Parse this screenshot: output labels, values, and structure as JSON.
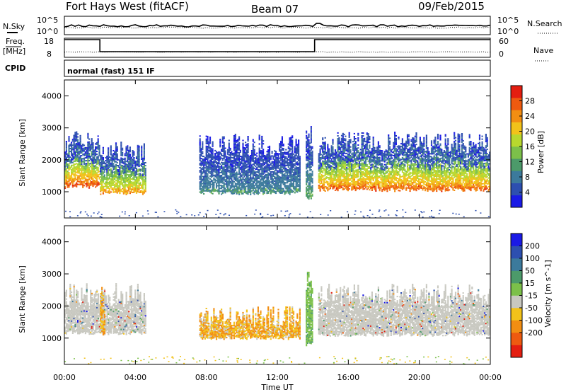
{
  "header": {
    "station": "Fort Hays West (fitACF)",
    "beam": "Beam 07",
    "date": "09/Feb/2015"
  },
  "top_panels": {
    "nsky_label": "N.Sky",
    "nsky_ticks": [
      "10^5",
      "10^0"
    ],
    "nsearch_label": "N.Search",
    "nsearch_ticks": [
      "10^5",
      "10^0"
    ],
    "freq_label": "Freq.",
    "freq_unit": "[MHz]",
    "freq_ticks": [
      "18",
      "8"
    ],
    "nave_label": "Nave",
    "nave_ticks": [
      "60",
      "0"
    ],
    "cpid_label": "CPID",
    "cpid_text": "normal (fast) 151 IF"
  },
  "chart_data": [
    {
      "type": "heatmap",
      "title": "",
      "xlabel": "",
      "ylabel": "Slant Range [km]",
      "x_ticks": [
        "00:00",
        "04:00",
        "08:00",
        "12:00",
        "16:00",
        "20:00",
        "00:00"
      ],
      "y_ticks": [
        "1000",
        "2000",
        "3000",
        "4000"
      ],
      "xlim_hours": [
        0,
        24
      ],
      "ylim_km": [
        180,
        4500
      ],
      "colorbar": {
        "label": "Power [dB]",
        "ticks": [
          "4",
          "8",
          "12",
          "16",
          "20",
          "24",
          "28"
        ],
        "range": [
          0,
          30
        ],
        "colors": [
          "#1a1ae6",
          "#2d4fb0",
          "#3c7a9c",
          "#4c9a6a",
          "#7cc04a",
          "#b8d82e",
          "#f2c21a",
          "#f28e12",
          "#ee5a10",
          "#e41e10"
        ]
      },
      "regions": [
        {
          "t0": 0.0,
          "t1": 2.0,
          "r0": 1150,
          "r1": 2900,
          "core": 1350,
          "level": 0.8
        },
        {
          "t0": 2.0,
          "t1": 4.6,
          "r0": 950,
          "r1": 2600,
          "core": 1150,
          "level": 0.65
        },
        {
          "t0": 7.6,
          "t1": 13.3,
          "r0": 950,
          "r1": 2800,
          "core": 1300,
          "level": 0.2
        },
        {
          "t0": 13.6,
          "t1": 14.0,
          "r0": 800,
          "r1": 3100,
          "core": 1500,
          "level": 0.3
        },
        {
          "t0": 14.3,
          "t1": 24.0,
          "r0": 1050,
          "r1": 2900,
          "core": 1200,
          "level": 0.75
        }
      ]
    },
    {
      "type": "heatmap",
      "title": "",
      "xlabel": "Time UT",
      "ylabel": "Slant Range [km]",
      "x_ticks": [
        "00:00",
        "04:00",
        "08:00",
        "12:00",
        "16:00",
        "20:00",
        "00:00"
      ],
      "y_ticks": [
        "1000",
        "2000",
        "3000",
        "4000"
      ],
      "xlim_hours": [
        0,
        24
      ],
      "ylim_km": [
        180,
        4500
      ],
      "colorbar": {
        "label": "Velocity [m s^-1]",
        "ticks": [
          "200",
          "100",
          "50",
          "15",
          "-15",
          "-50",
          "-100",
          "-200"
        ],
        "range": [
          -250,
          250
        ],
        "colors": [
          "#1a1ae6",
          "#2d4fb0",
          "#3c7a9c",
          "#4c9a6a",
          "#7cc04a",
          "#c8c8c0",
          "#f2c21a",
          "#f28e12",
          "#ee5a10",
          "#e41e10"
        ]
      },
      "regions": [
        {
          "t0": 0.0,
          "t1": 4.6,
          "r0": 1150,
          "r1": 2700,
          "vel": "ground"
        },
        {
          "t0": 2.0,
          "t1": 2.3,
          "r0": 1100,
          "r1": 2600,
          "vel": "negative"
        },
        {
          "t0": 7.6,
          "t1": 13.3,
          "r0": 1000,
          "r1": 2000,
          "vel": "negative"
        },
        {
          "t0": 13.6,
          "t1": 14.0,
          "r0": 800,
          "r1": 3100,
          "vel": "positive"
        },
        {
          "t0": 14.3,
          "t1": 24.0,
          "r0": 1100,
          "r1": 2700,
          "vel": "ground"
        }
      ]
    }
  ]
}
